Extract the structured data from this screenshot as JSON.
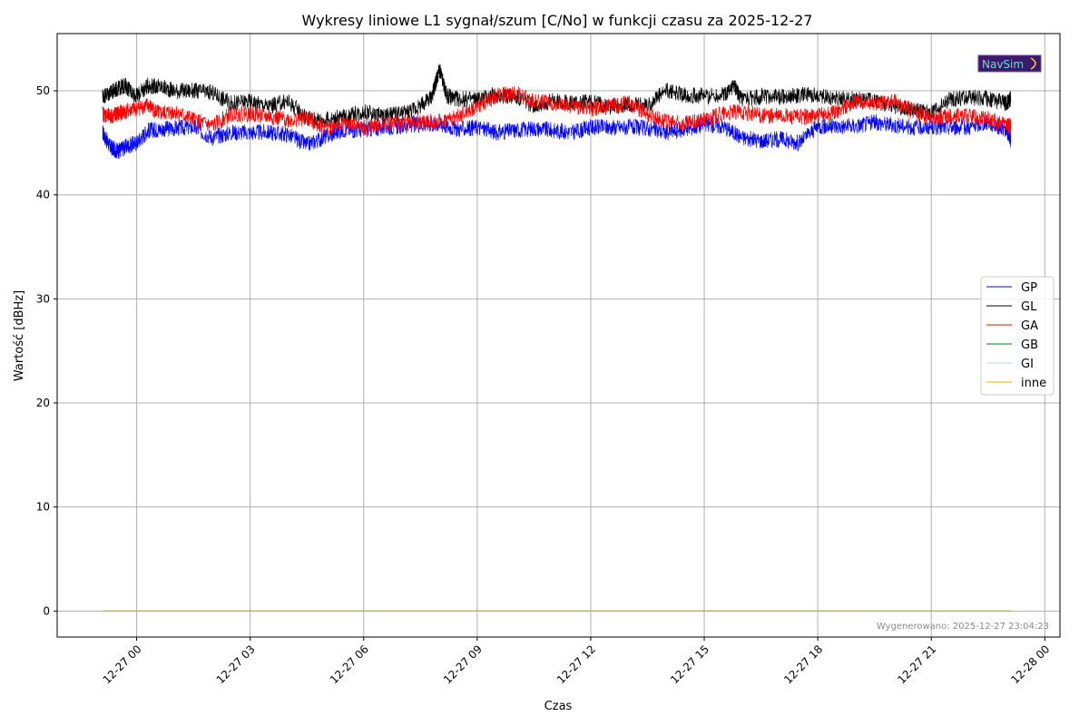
{
  "chart_data": {
    "type": "line",
    "title": "Wykresy liniowe L1 sygnał/szum [C/No] w funkcji czasu za 2025-12-27",
    "xlabel": "Czas",
    "ylabel": "Wartość [dBHz]",
    "ylim": [
      -2.5,
      55.5
    ],
    "y_ticks": [
      0,
      10,
      20,
      30,
      40,
      50
    ],
    "xlim_hours": [
      -2.1,
      24.4
    ],
    "x_ticks": [
      {
        "label": "12-27 00",
        "hour": 0
      },
      {
        "label": "12-27 03",
        "hour": 3
      },
      {
        "label": "12-27 06",
        "hour": 6
      },
      {
        "label": "12-27 09",
        "hour": 9
      },
      {
        "label": "12-27 12",
        "hour": 12
      },
      {
        "label": "12-27 15",
        "hour": 15
      },
      {
        "label": "12-27 18",
        "hour": 18
      },
      {
        "label": "12-27 21",
        "hour": 21
      },
      {
        "label": "12-28 00",
        "hour": 24
      }
    ],
    "grid": true,
    "legend_position": "center-right",
    "series": [
      {
        "name": "GP",
        "color": "#0000ff",
        "x": [
          -0.9,
          -0.7,
          -0.5,
          -0.3,
          0,
          0.3,
          0.6,
          1,
          1.5,
          2,
          2.5,
          3,
          3.5,
          4,
          4.5,
          5,
          5.5,
          6,
          6.5,
          7,
          7.5,
          8,
          8.5,
          9,
          9.5,
          10,
          10.5,
          11,
          11.5,
          12,
          12.5,
          13,
          13.5,
          14,
          14.5,
          15,
          15.5,
          16,
          16.5,
          17,
          17.5,
          18,
          18.5,
          19,
          19.5,
          20,
          20.5,
          21,
          21.5,
          22,
          22.5,
          23,
          23.1
        ],
        "y": [
          46,
          44.6,
          44.2,
          44.6,
          45,
          46.2,
          46.3,
          46.4,
          46.5,
          45.5,
          46,
          46,
          46,
          45.8,
          44.8,
          45.6,
          46.3,
          46.2,
          46.5,
          46.6,
          46.8,
          46.8,
          46.3,
          46.5,
          46,
          46.2,
          46.4,
          46.2,
          46,
          46.5,
          46.5,
          46.5,
          46.4,
          46,
          46.3,
          46.8,
          46.6,
          45.5,
          45.2,
          45.4,
          45,
          46.6,
          46.6,
          46.6,
          47,
          46.7,
          46.5,
          46.5,
          46.5,
          46.5,
          47,
          46.2,
          45.3
        ]
      },
      {
        "name": "GL",
        "color": "#000000",
        "x": [
          -0.9,
          -0.7,
          -0.5,
          -0.3,
          0,
          0.3,
          0.6,
          1,
          1.5,
          2,
          2.5,
          3,
          3.5,
          4,
          4.5,
          5,
          5.5,
          6,
          6.5,
          7,
          7.5,
          7.8,
          8,
          8.2,
          8.5,
          9,
          9.5,
          10,
          10.5,
          11,
          11.5,
          12,
          12.5,
          13,
          13.5,
          14,
          14.5,
          15,
          15.5,
          15.8,
          16,
          16.5,
          17,
          17.5,
          18,
          18.5,
          19,
          19.5,
          20,
          20.5,
          21,
          21.5,
          22,
          22.5,
          23,
          23.1
        ],
        "y": [
          49.5,
          49.8,
          50.2,
          50.5,
          49.5,
          50.5,
          50.4,
          50,
          50,
          49.8,
          48.8,
          49,
          48.5,
          49,
          47.4,
          47.2,
          47.5,
          48,
          47.6,
          47.8,
          48.5,
          49.5,
          52,
          49.5,
          49.2,
          49.2,
          49.6,
          49.4,
          48.6,
          49,
          48.8,
          49,
          48.5,
          48.6,
          48.6,
          50,
          49.6,
          49.5,
          49.6,
          50.5,
          49,
          49.5,
          49.4,
          49.6,
          49.5,
          49.4,
          49.2,
          49,
          48.6,
          48.2,
          47.8,
          49.2,
          49.4,
          49.2,
          48.8,
          49.2
        ]
      },
      {
        "name": "GA",
        "color": "#ff0000",
        "x": [
          -0.9,
          -0.7,
          -0.5,
          -0.3,
          0,
          0.3,
          0.6,
          1,
          1.5,
          2,
          2.5,
          3,
          3.5,
          4,
          4.5,
          5,
          5.5,
          6,
          6.5,
          7,
          7.5,
          8,
          8.5,
          9,
          9.5,
          10,
          10.5,
          11,
          11.5,
          12,
          12.5,
          13,
          13.5,
          14,
          14.5,
          15,
          15.5,
          16,
          16.5,
          17,
          17.5,
          18,
          18.5,
          19,
          19.5,
          20,
          20.5,
          21,
          21.5,
          22,
          22.5,
          23,
          23.1
        ],
        "y": [
          47.8,
          47.5,
          47.8,
          48,
          48.3,
          48.6,
          47.8,
          48,
          47.2,
          46.6,
          47.8,
          47.8,
          47.5,
          47.2,
          47.3,
          46.5,
          46.8,
          46.4,
          46.8,
          46.9,
          47,
          47,
          47.5,
          48.5,
          49.5,
          49.8,
          49,
          48.8,
          48.6,
          48.3,
          48.5,
          48.8,
          47.8,
          47,
          46.8,
          47.2,
          47.8,
          48,
          47.6,
          47.6,
          47.5,
          47.6,
          48,
          49,
          48.8,
          49,
          48,
          47.5,
          47.5,
          47.6,
          47.3,
          46.6,
          46.6
        ]
      },
      {
        "name": "GB",
        "color": "#008000",
        "x": [
          -0.9,
          23.1
        ],
        "y": [
          0,
          0
        ]
      },
      {
        "name": "GI",
        "color": "#add8e6",
        "x": [
          -0.9,
          23.1
        ],
        "y": [
          0,
          0
        ]
      },
      {
        "name": "inne",
        "color": "#ffa500",
        "x": [
          -0.9,
          23.1
        ],
        "y": [
          0,
          0
        ]
      }
    ],
    "footer": "Wygenerowano: 2025-12-27 23:04:23",
    "logo_text": "NavSim"
  }
}
